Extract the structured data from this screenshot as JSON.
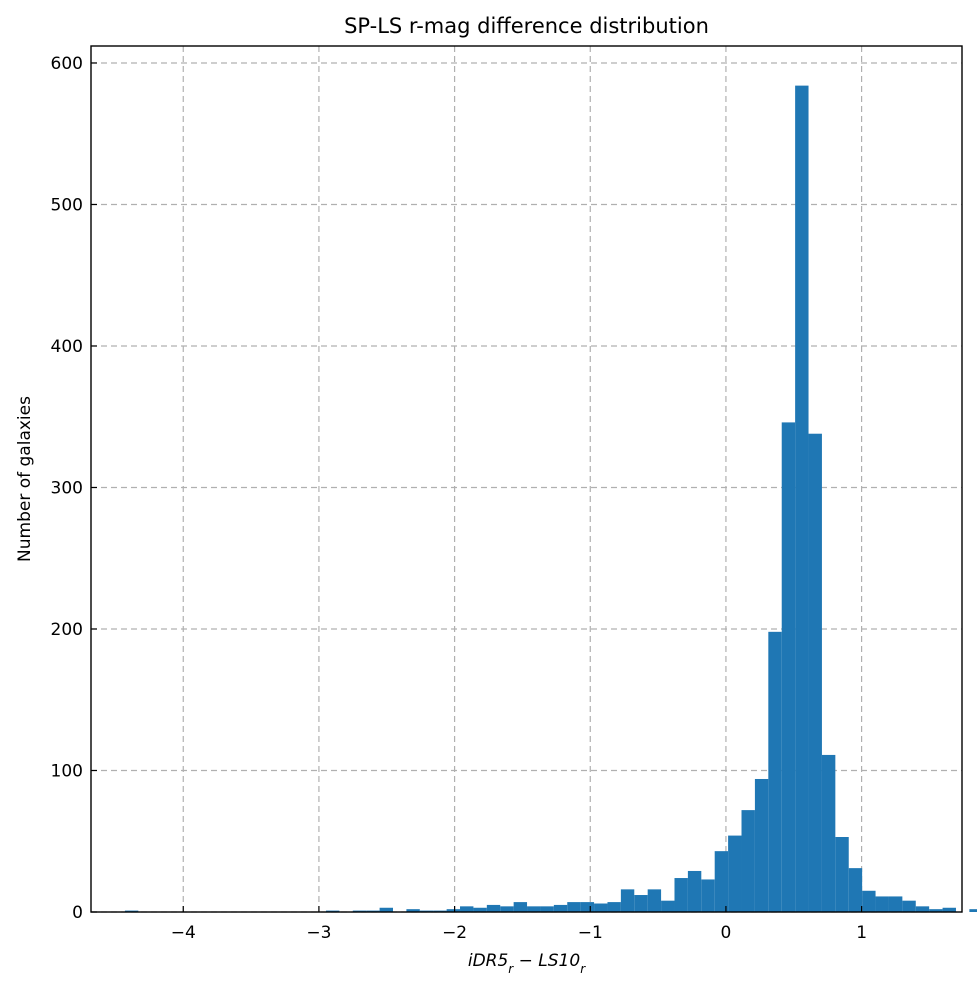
{
  "chart_data": {
    "type": "bar",
    "title": "SP-LS r-mag difference distribution",
    "xlabel": "iDR5_r − LS10_r",
    "ylabel": "Number of galaxies",
    "xlim": [
      -4.68,
      1.74
    ],
    "ylim": [
      0,
      612
    ],
    "grid": true,
    "bin_edges_start": -4.43,
    "bin_width": 0.0988,
    "x_ticks": [
      -4,
      -3,
      -2,
      -1,
      0,
      1
    ],
    "x_tick_labels": [
      "−4",
      "−3",
      "−2",
      "−1",
      "0",
      "1"
    ],
    "y_ticks": [
      0,
      100,
      200,
      300,
      400,
      500,
      600
    ],
    "y_tick_labels": [
      "0",
      "100",
      "200",
      "300",
      "400",
      "500",
      "600"
    ],
    "bar_color": "#1f77b4",
    "values": [
      1,
      0,
      0,
      0,
      0,
      0,
      0,
      0,
      0,
      0,
      0,
      0,
      0,
      0,
      0,
      1,
      0,
      1,
      1,
      3,
      0,
      2,
      1,
      1,
      2,
      4,
      3,
      5,
      4,
      7,
      4,
      4,
      5,
      7,
      7,
      6,
      7,
      16,
      12,
      16,
      8,
      24,
      29,
      23,
      43,
      54,
      72,
      94,
      198,
      346,
      584,
      338,
      111,
      53,
      31,
      15,
      11,
      11,
      8,
      4,
      2,
      3,
      0,
      2
    ]
  }
}
